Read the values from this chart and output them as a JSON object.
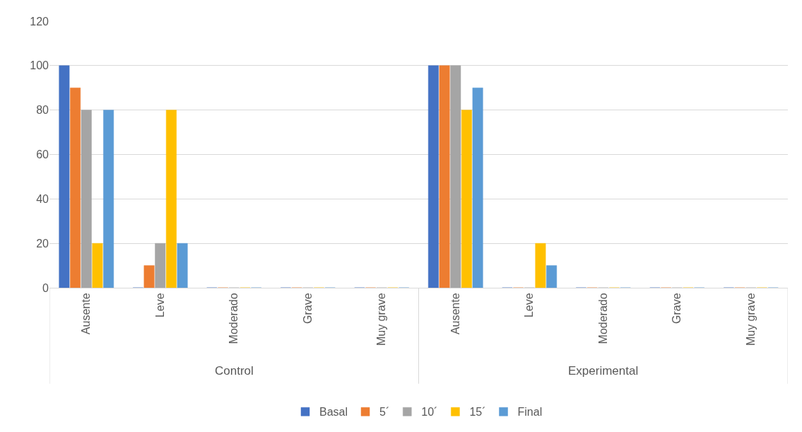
{
  "chart_data": {
    "type": "bar",
    "categories": [
      "Ausente",
      "Leve",
      "Moderado",
      "Grave",
      "Muy grave",
      "Ausente",
      "Leve",
      "Moderado",
      "Grave",
      "Muy grave"
    ],
    "series": [
      {
        "name": "Basal",
        "color": "#4472c4",
        "values": [
          100,
          0,
          0,
          0,
          0,
          100,
          0,
          0,
          0,
          0
        ]
      },
      {
        "name": "5´",
        "color": "#ed7d31",
        "values": [
          90,
          10,
          0,
          0,
          0,
          100,
          0,
          0,
          0,
          0
        ]
      },
      {
        "name": "10´",
        "color": "#a5a5a5",
        "values": [
          80,
          20,
          0,
          0,
          0,
          100,
          0,
          0,
          0,
          0
        ]
      },
      {
        "name": "15´",
        "color": "#ffc000",
        "values": [
          20,
          80,
          0,
          0,
          0,
          80,
          20,
          0,
          0,
          0
        ]
      },
      {
        "name": "Final",
        "color": "#5b9bd5",
        "values": [
          80,
          20,
          0,
          0,
          0,
          90,
          10,
          0,
          0,
          0
        ]
      }
    ],
    "annotations": [
      "Control",
      "Experimental"
    ],
    "ylim": [
      0,
      120
    ],
    "yticks": [
      0,
      20,
      40,
      60,
      80,
      100,
      120
    ],
    "grid": "y",
    "legend": "bottom"
  }
}
